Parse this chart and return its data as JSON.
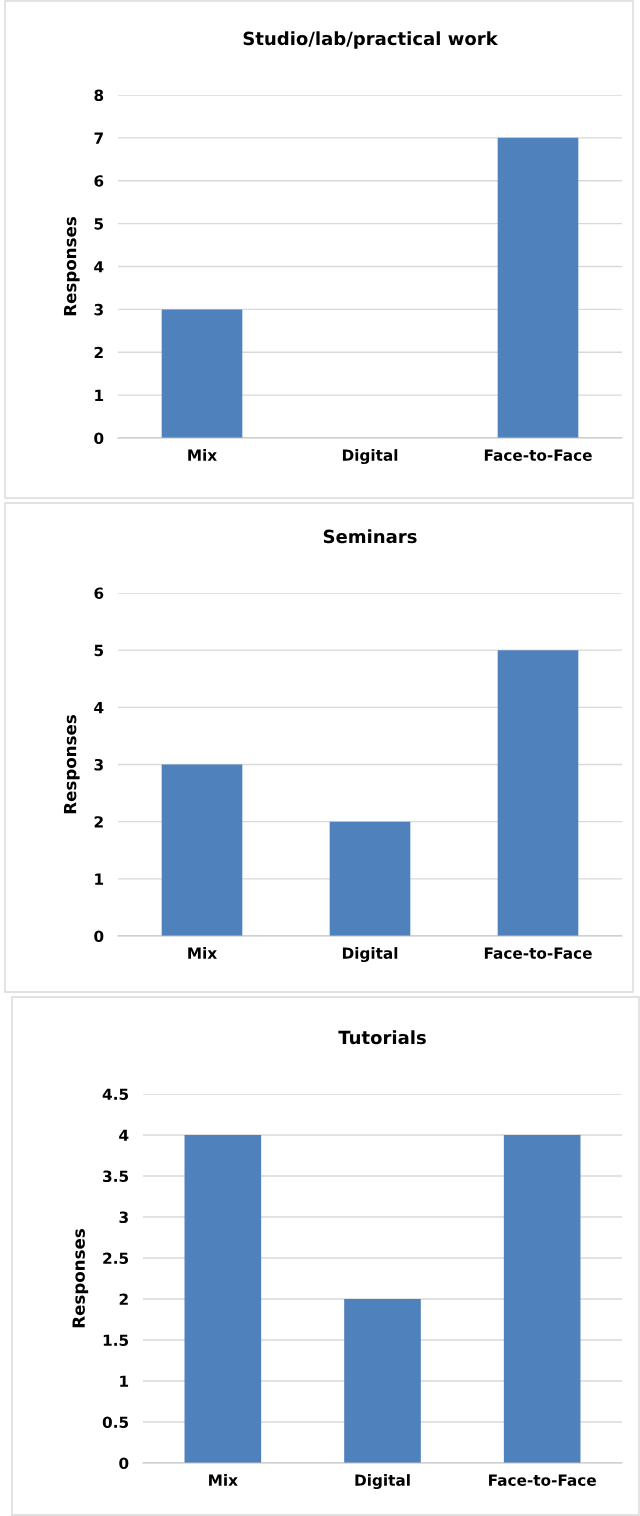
{
  "chart_data": [
    {
      "type": "bar",
      "title": "Studio/lab/practical work",
      "ylabel": "Responses",
      "categories": [
        "Mix",
        "Digital",
        "Face-to-Face"
      ],
      "values": [
        3,
        0,
        7
      ],
      "color": "#4f81bd",
      "ylim": [
        0,
        8
      ],
      "yticks": [
        0,
        1,
        2,
        3,
        4,
        5,
        6,
        7,
        8
      ],
      "grid": "y"
    },
    {
      "type": "bar",
      "title": "Seminars",
      "ylabel": "Responses",
      "categories": [
        "Mix",
        "Digital",
        "Face-to-Face"
      ],
      "values": [
        3,
        2,
        5
      ],
      "color": "#4f81bd",
      "ylim": [
        0,
        6
      ],
      "yticks": [
        0,
        1,
        2,
        3,
        4,
        5,
        6
      ],
      "grid": "y"
    },
    {
      "type": "bar",
      "title": "Tutorials",
      "ylabel": "Responses",
      "categories": [
        "Mix",
        "Digital",
        "Face-to-Face"
      ],
      "values": [
        4,
        2,
        4
      ],
      "color": "#4f81bd",
      "ylim": [
        0,
        4.5
      ],
      "yticks": [
        0,
        0.5,
        1,
        1.5,
        2,
        2.5,
        3,
        3.5,
        4,
        4.5
      ],
      "grid": "y"
    }
  ]
}
